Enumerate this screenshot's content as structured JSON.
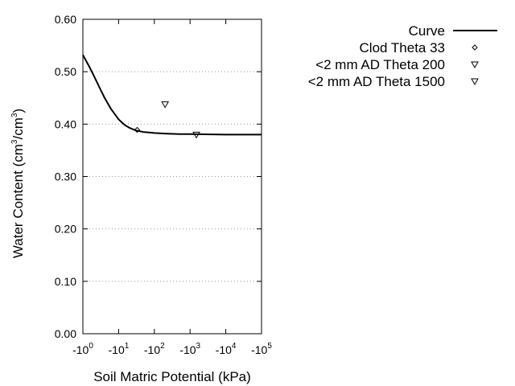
{
  "chart_data": {
    "type": "scatter",
    "xlabel": "Soil Matric Potential (kPa)",
    "ylabel": {
      "prefix": "Water Content (cm",
      "sup1": "3",
      "mid": "/cm",
      "sup2": "3",
      "suffix": ")"
    },
    "x_scale": "log",
    "x_range": [
      1,
      100000
    ],
    "ylim": [
      0.0,
      0.6
    ],
    "grid": {
      "y": true,
      "x": false
    },
    "legend_position": "top-right",
    "y_ticks": [
      "0.00",
      "0.10",
      "0.20",
      "0.30",
      "0.40",
      "0.50",
      "0.60"
    ],
    "y_tick_values": [
      0.0,
      0.1,
      0.2,
      0.3,
      0.4,
      0.5,
      0.6
    ],
    "x_ticks": [
      {
        "value": 1,
        "base": "-10",
        "exp": "0"
      },
      {
        "value": 10,
        "base": "-10",
        "exp": "1"
      },
      {
        "value": 100,
        "base": "-10",
        "exp": "2"
      },
      {
        "value": 1000,
        "base": "-10",
        "exp": "3"
      },
      {
        "value": 10000,
        "base": "-10",
        "exp": "4"
      },
      {
        "value": 100000,
        "base": "-10",
        "exp": "5"
      }
    ],
    "series": [
      {
        "name": "Curve",
        "style": "line",
        "x": [
          1,
          1.5,
          2,
          3,
          4,
          6,
          8,
          10,
          15,
          20,
          30,
          50,
          100,
          200,
          500,
          1000,
          10000,
          100000
        ],
        "y": [
          0.532,
          0.51,
          0.493,
          0.468,
          0.451,
          0.43,
          0.418,
          0.409,
          0.398,
          0.393,
          0.388,
          0.385,
          0.383,
          0.382,
          0.381,
          0.381,
          0.38,
          0.38
        ]
      },
      {
        "name": "Clod Theta 33",
        "style": "marker",
        "marker": "diamond",
        "x": [
          33
        ],
        "y": [
          0.389
        ]
      },
      {
        "name": "<2 mm AD Theta 200",
        "style": "marker",
        "marker": "triangle-down",
        "x": [
          200
        ],
        "y": [
          0.438
        ]
      },
      {
        "name": "<2 mm AD Theta 1500",
        "style": "marker",
        "marker": "triangle-down",
        "x": [
          1500
        ],
        "y": [
          0.38
        ]
      }
    ]
  }
}
